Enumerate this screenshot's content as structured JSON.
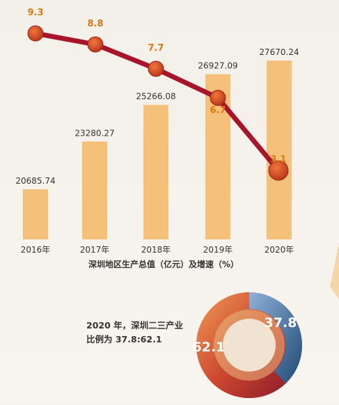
{
  "chart_data": [
    {
      "type": "bar",
      "categories": [
        "2016年",
        "2017年",
        "2018年",
        "2019年",
        "2020年"
      ],
      "series": [
        {
          "values": [
            20685.74,
            23280.27,
            25266.08,
            26927.09,
            27670.24
          ]
        }
      ],
      "xlabel": "深圳地区生产总值（亿元）及增速（%）",
      "color": "#f5c07a"
    },
    {
      "type": "line",
      "categories": [
        "2016年",
        "2017年",
        "2018年",
        "2019年",
        "2020年"
      ],
      "series": [
        {
          "values": [
            9.3,
            8.8,
            7.7,
            6.7,
            3.1
          ]
        }
      ],
      "line_color": "#a8142a",
      "marker_color": "#d4461e",
      "label_color": "#d97a10"
    },
    {
      "type": "pie",
      "style": "donut",
      "caption_line1": "2020 年，深圳二三产业",
      "caption_line2": "比例为 37.8:62.1",
      "slices": [
        {
          "value": 37.8,
          "color": "#2b5a87"
        },
        {
          "value": 62.1,
          "color": "#b8342e"
        }
      ]
    }
  ]
}
